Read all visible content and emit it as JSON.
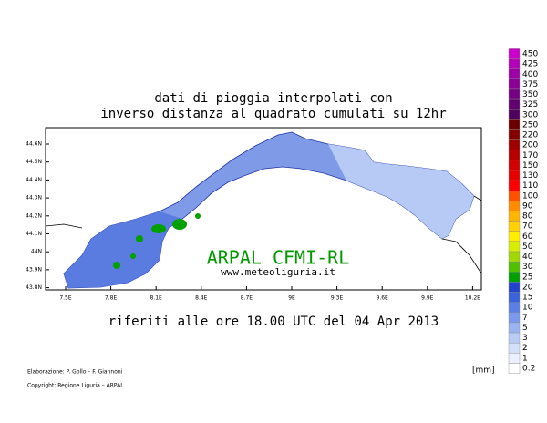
{
  "title": {
    "line1": "dati di pioggia interpolati con",
    "line2": "inverso distanza al quadrato cumulati su 12hr"
  },
  "map": {
    "lat_labels": [
      "44.6N",
      "44.5N",
      "44.4N",
      "44.3N",
      "44.2N",
      "44.1N",
      "44N",
      "43.9N",
      "43.8N"
    ],
    "lon_labels": [
      "7.5E",
      "7.8E",
      "8.1E",
      "8.4E",
      "8.7E",
      "9E",
      "9.3E",
      "9.6E",
      "9.9E",
      "10.2E"
    ],
    "watermark": "ARPAL CFMI-RL",
    "website": "www.meteoliguria.it"
  },
  "subtitle": "riferiti alle ore 18.00 UTC del 04 Apr 2013",
  "footer": {
    "credits": "Elaborazione: P. Gollo – F. Giannoni",
    "copyright": "Copyright: Regione Liguria – ARPAL"
  },
  "legend": {
    "unit": "[mm]",
    "items": [
      {
        "label": "450",
        "color": "#cc00cc"
      },
      {
        "label": "425",
        "color": "#b400b8"
      },
      {
        "label": "400",
        "color": "#9e00a8"
      },
      {
        "label": "375",
        "color": "#8a0096"
      },
      {
        "label": "350",
        "color": "#760084"
      },
      {
        "label": "325",
        "color": "#620070"
      },
      {
        "label": "300",
        "color": "#50005c"
      },
      {
        "label": "250",
        "color": "#6a0000"
      },
      {
        "label": "220",
        "color": "#840000"
      },
      {
        "label": "200",
        "color": "#9e0000"
      },
      {
        "label": "170",
        "color": "#b80000"
      },
      {
        "label": "150",
        "color": "#d20000"
      },
      {
        "label": "130",
        "color": "#e80000"
      },
      {
        "label": "110",
        "color": "#ff0000"
      },
      {
        "label": "100",
        "color": "#ff5000"
      },
      {
        "label": "90",
        "color": "#ff8c00"
      },
      {
        "label": "80",
        "color": "#ffb400"
      },
      {
        "label": "70",
        "color": "#ffd200"
      },
      {
        "label": "60",
        "color": "#ffee00"
      },
      {
        "label": "50",
        "color": "#d8ee00"
      },
      {
        "label": "40",
        "color": "#a0d800"
      },
      {
        "label": "30",
        "color": "#50c000"
      },
      {
        "label": "25",
        "color": "#00a000"
      },
      {
        "label": "20",
        "color": "#2244cc"
      },
      {
        "label": "15",
        "color": "#3a62dd"
      },
      {
        "label": "10",
        "color": "#5a80e6"
      },
      {
        "label": "7",
        "color": "#7a9aee"
      },
      {
        "label": "5",
        "color": "#9ab4f2"
      },
      {
        "label": "3",
        "color": "#b8ccf6"
      },
      {
        "label": "2",
        "color": "#d4e0fa"
      },
      {
        "label": "1",
        "color": "#eaf0fd"
      },
      {
        "label": "0.2",
        "color": "#ffffff"
      }
    ]
  }
}
